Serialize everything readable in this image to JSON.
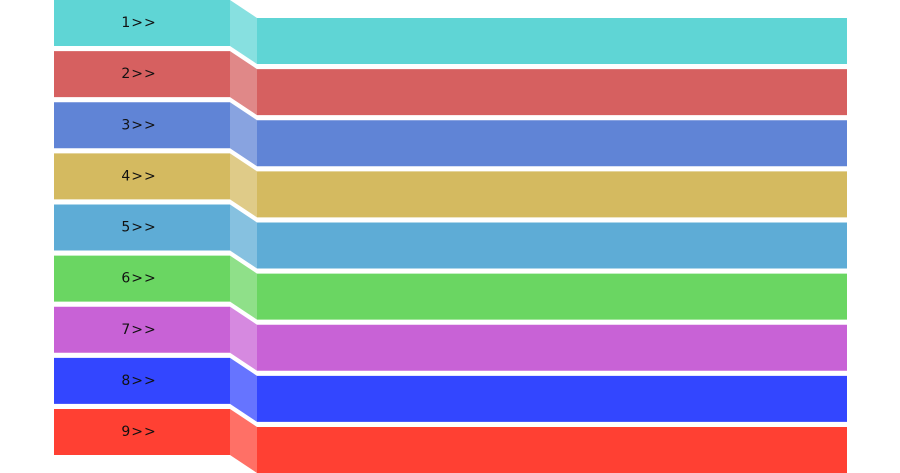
{
  "items": [
    {
      "label": "1>>",
      "color": "#5fd5d5"
    },
    {
      "label": "2>>",
      "color": "#d66060"
    },
    {
      "label": "3>>",
      "color": "#6084d6"
    },
    {
      "label": "4>>",
      "color": "#d4ba60"
    },
    {
      "label": "5>>",
      "color": "#5eacd6"
    },
    {
      "label": "6>>",
      "color": "#6ad662"
    },
    {
      "label": "7>>",
      "color": "#c862d6"
    },
    {
      "label": "8>>",
      "color": "#3346ff"
    },
    {
      "label": "9>>",
      "color": "#ff4033"
    }
  ]
}
